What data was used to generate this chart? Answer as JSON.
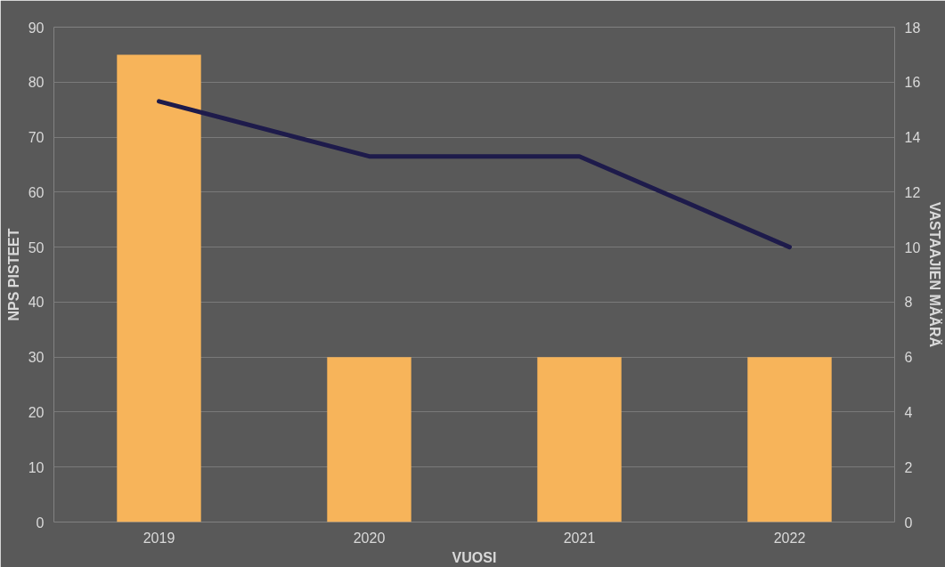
{
  "chart_data": {
    "type": "bar",
    "xlabel": "VUOSI",
    "ylabel": "NPS PISTEET",
    "y2label": "VASTAAJIEN MÄÄRÄ",
    "categories": [
      "2019",
      "2020",
      "2021",
      "2022"
    ],
    "series": [
      {
        "color": "#f7b45a",
        "values": [
          85,
          30,
          30,
          30
        ]
      },
      {
        "type": "line",
        "axis": "y2",
        "color": "#1e1b4b",
        "values": [
          15.3,
          13.3,
          13.3,
          10
        ]
      }
    ],
    "ylim": [
      0,
      90
    ],
    "yticks": [
      0,
      10,
      20,
      30,
      40,
      50,
      60,
      70,
      80,
      90
    ],
    "y2lim": [
      0,
      18
    ],
    "y2ticks": [
      0,
      2,
      4,
      6,
      8,
      10,
      12,
      14,
      16,
      18
    ],
    "grid": "y",
    "marker": "none",
    "line_style": "solid"
  }
}
